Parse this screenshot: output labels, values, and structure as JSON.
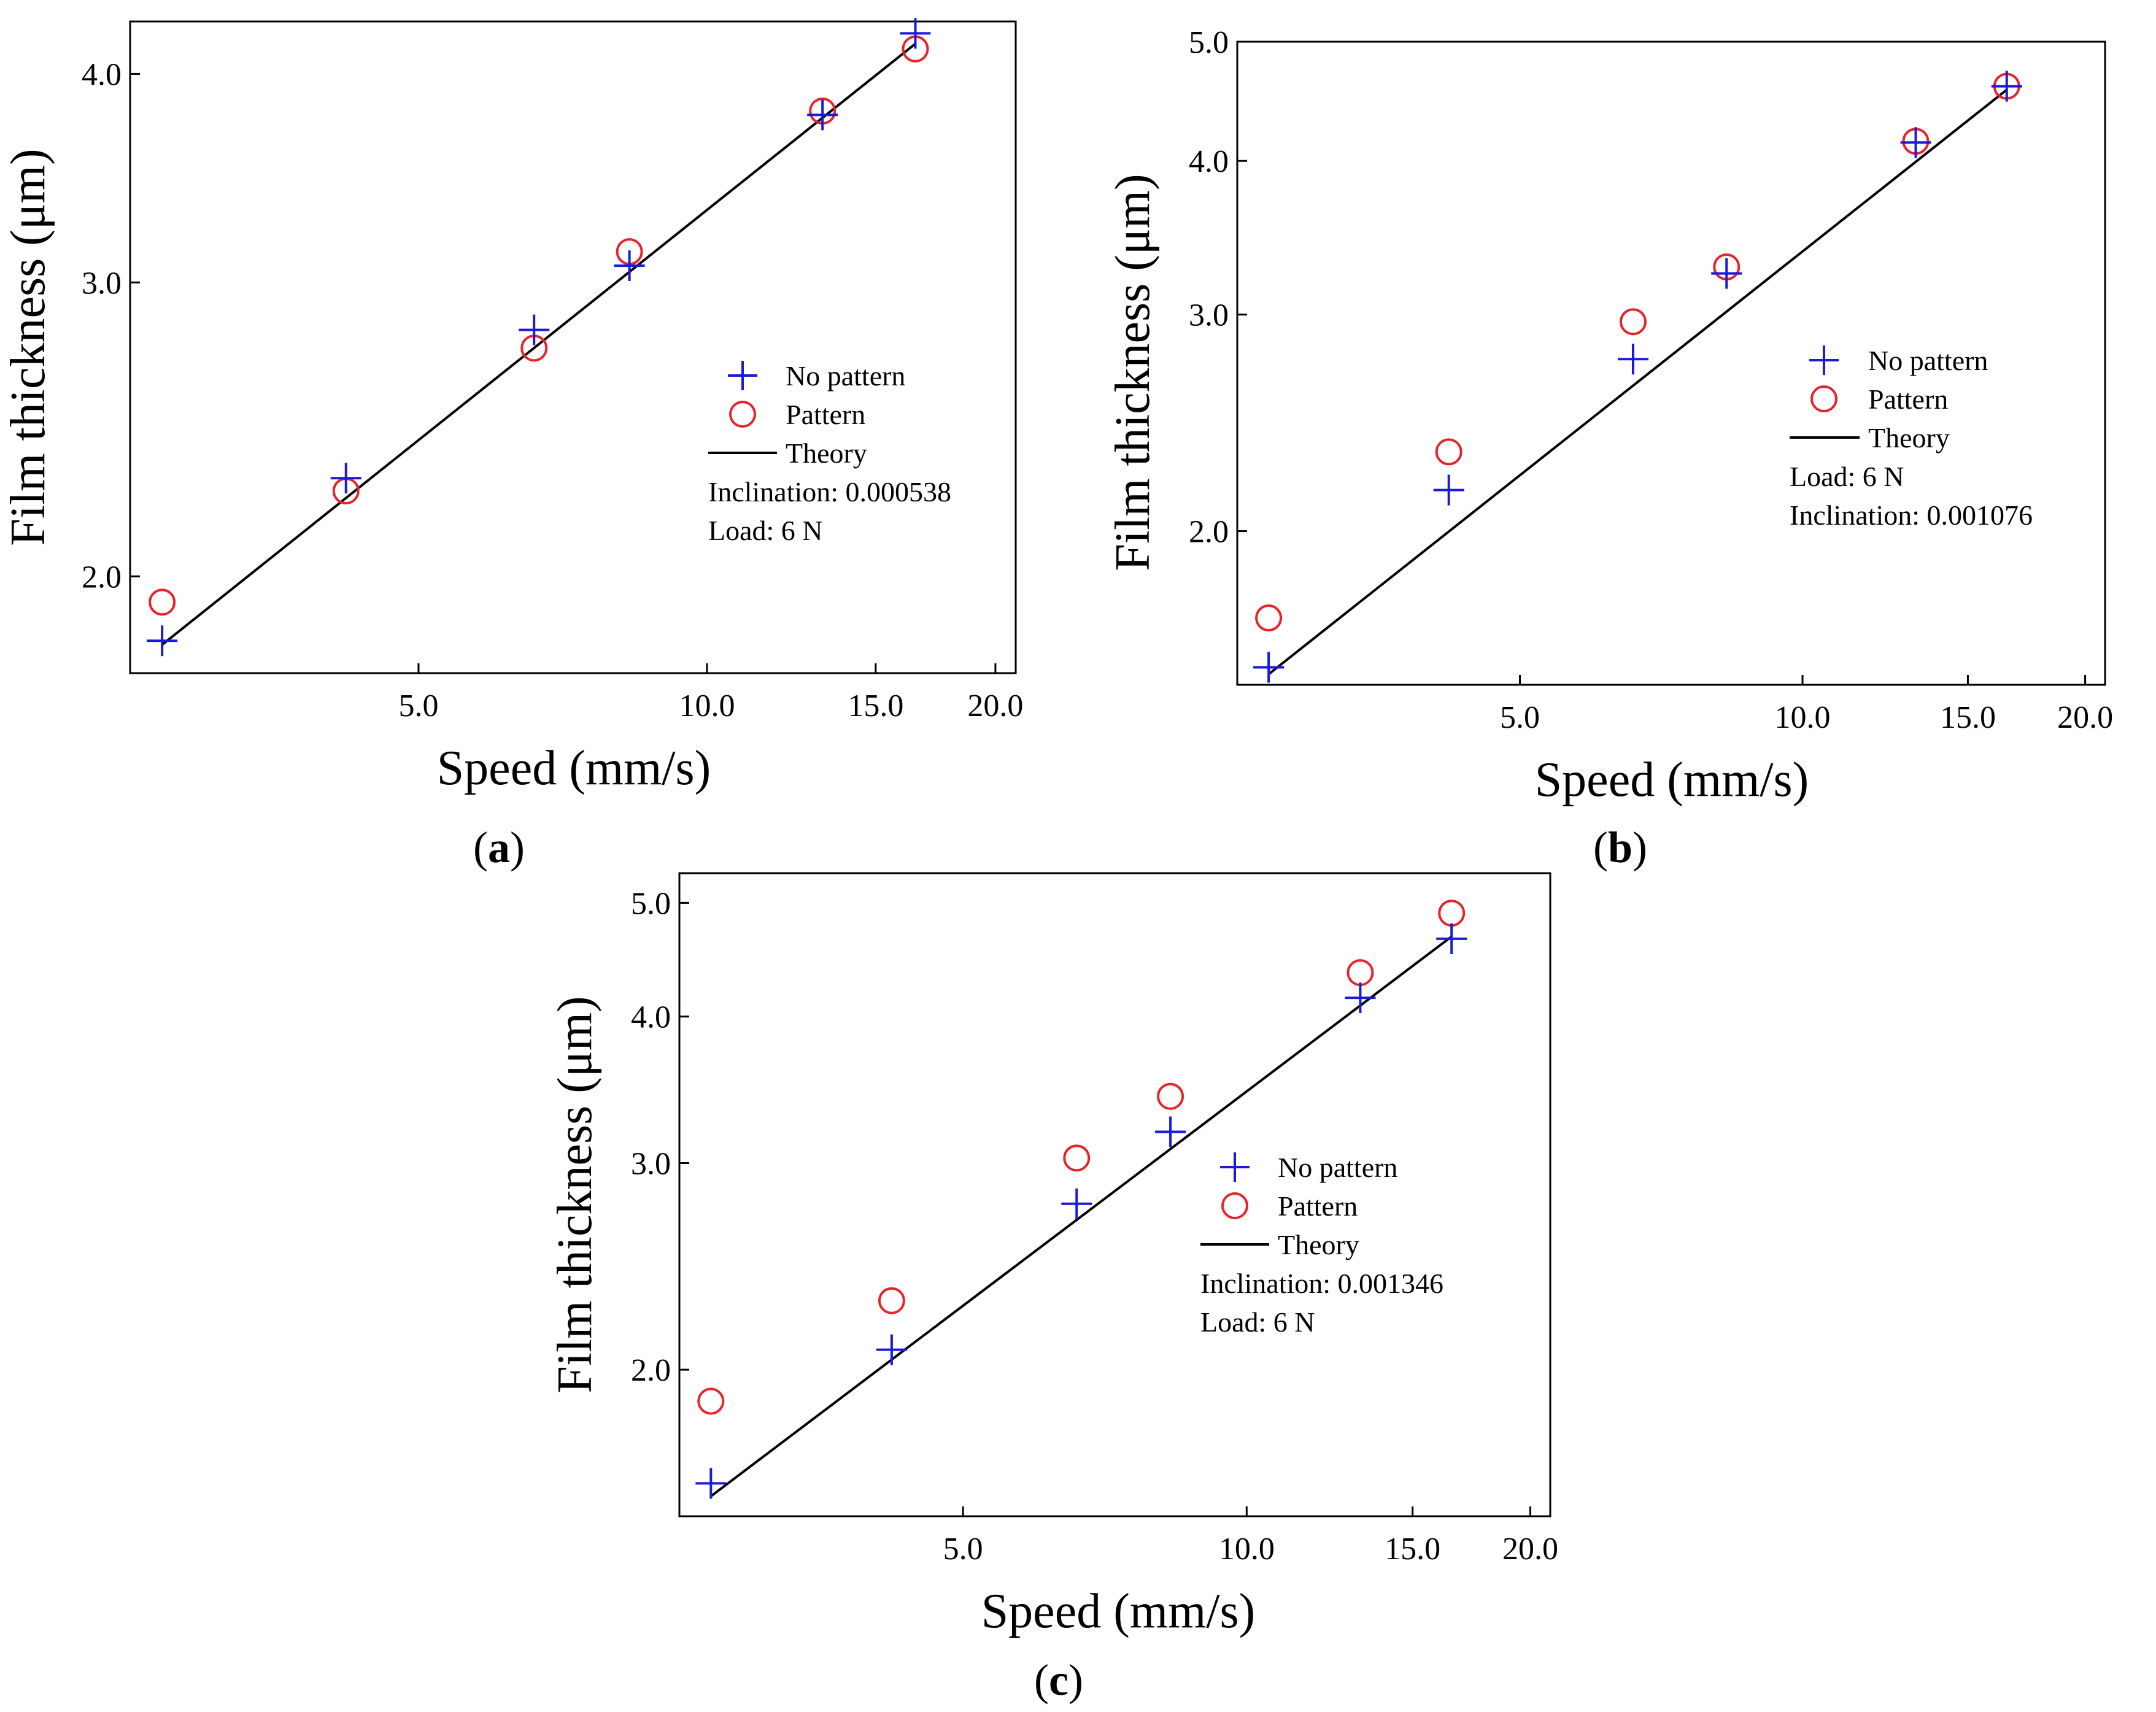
{
  "figure": {
    "panels": [
      {
        "id": "a",
        "label_open": "(",
        "label_letter": "a",
        "label_close": ")",
        "legend_extra": [
          "Inclination: 0.000538",
          "Load: 6 N"
        ]
      },
      {
        "id": "b",
        "label_open": "(",
        "label_letter": "b",
        "label_close": ")",
        "legend_extra": [
          "Load: 6 N",
          "Inclination: 0.001076"
        ]
      },
      {
        "id": "c",
        "label_open": "(",
        "label_letter": "c",
        "label_close": ")",
        "legend_extra": [
          "Inclination: 0.001346",
          "Load: 6 N"
        ]
      }
    ]
  },
  "colors": {
    "no_pattern": "#1a1adb",
    "pattern": "#e8232a",
    "theory": "#000000",
    "axes": "#000000"
  },
  "chart_data": [
    {
      "type": "scatter",
      "title": "",
      "xlabel": "Speed (mm/s)",
      "ylabel": "Film thickness (μm)",
      "xscale": "log",
      "yscale": "log",
      "xlim": [
        2.5,
        21
      ],
      "ylim": [
        1.75,
        4.3
      ],
      "xticks": [
        5.0,
        10.0,
        15.0,
        20.0
      ],
      "xtick_labels": [
        "5.0",
        "10.0",
        "15.0",
        "20.0"
      ],
      "yticks": [
        2.0,
        3.0,
        4.0
      ],
      "ytick_labels": [
        "2.0",
        "3.0",
        "4.0"
      ],
      "legend_position": "right",
      "series": [
        {
          "name": "No pattern",
          "marker": "plus",
          "x": [
            2.7,
            4.2,
            6.6,
            8.3,
            13.2,
            16.5
          ],
          "y": [
            1.83,
            2.29,
            2.81,
            3.07,
            3.78,
            4.23
          ]
        },
        {
          "name": "Pattern",
          "marker": "circle",
          "x": [
            2.7,
            4.2,
            6.6,
            8.3,
            13.2,
            16.5
          ],
          "y": [
            1.93,
            2.25,
            2.74,
            3.13,
            3.8,
            4.14
          ]
        },
        {
          "name": "Theory",
          "marker": "line",
          "x": [
            2.7,
            16.5
          ],
          "y": [
            1.82,
            4.17
          ]
        }
      ]
    },
    {
      "type": "scatter",
      "title": "",
      "xlabel": "Speed (mm/s)",
      "ylabel": "Film thickness (μm)",
      "xscale": "log",
      "yscale": "log",
      "xlim": [
        2.5,
        21
      ],
      "ylim": [
        1.5,
        5.0
      ],
      "xticks": [
        5.0,
        10.0,
        15.0,
        20.0
      ],
      "xtick_labels": [
        "5.0",
        "10.0",
        "15.0",
        "20.0"
      ],
      "yticks": [
        2.0,
        3.0,
        4.0,
        5.0
      ],
      "ytick_labels": [
        "2.0",
        "3.0",
        "4.0",
        "5.0"
      ],
      "legend_position": "right",
      "series": [
        {
          "name": "No pattern",
          "marker": "plus",
          "x": [
            2.7,
            4.2,
            6.6,
            8.3,
            13.2,
            16.5
          ],
          "y": [
            1.55,
            2.16,
            2.76,
            3.24,
            4.14,
            4.6
          ]
        },
        {
          "name": "Pattern",
          "marker": "circle",
          "x": [
            2.7,
            4.2,
            6.6,
            8.3,
            13.2,
            16.5
          ],
          "y": [
            1.7,
            2.32,
            2.96,
            3.28,
            4.15,
            4.6
          ]
        },
        {
          "name": "Theory",
          "marker": "line",
          "x": [
            2.7,
            16.5
          ],
          "y": [
            1.53,
            4.57
          ]
        }
      ]
    },
    {
      "type": "scatter",
      "title": "",
      "xlabel": "Speed (mm/s)",
      "ylabel": "Film thickness (μm)",
      "xscale": "log",
      "yscale": "log",
      "xlim": [
        2.5,
        21
      ],
      "ylim": [
        1.5,
        5.3
      ],
      "xticks": [
        5.0,
        10.0,
        15.0,
        20.0
      ],
      "xtick_labels": [
        "5.0",
        "10.0",
        "15.0",
        "20.0"
      ],
      "yticks": [
        2.0,
        3.0,
        4.0,
        5.0
      ],
      "ytick_labels": [
        "2.0",
        "3.0",
        "4.0",
        "5.0"
      ],
      "legend_position": "right",
      "series": [
        {
          "name": "No pattern",
          "marker": "plus",
          "x": [
            2.7,
            4.2,
            6.6,
            8.3,
            13.2,
            16.5
          ],
          "y": [
            1.6,
            2.08,
            2.77,
            3.19,
            4.15,
            4.66
          ]
        },
        {
          "name": "Pattern",
          "marker": "circle",
          "x": [
            2.7,
            4.2,
            6.6,
            8.3,
            13.2,
            16.5
          ],
          "y": [
            1.88,
            2.29,
            3.03,
            3.42,
            4.36,
            4.9
          ]
        },
        {
          "name": "Theory",
          "marker": "line",
          "x": [
            2.7,
            16.5
          ],
          "y": [
            1.56,
            4.68
          ]
        }
      ]
    }
  ]
}
